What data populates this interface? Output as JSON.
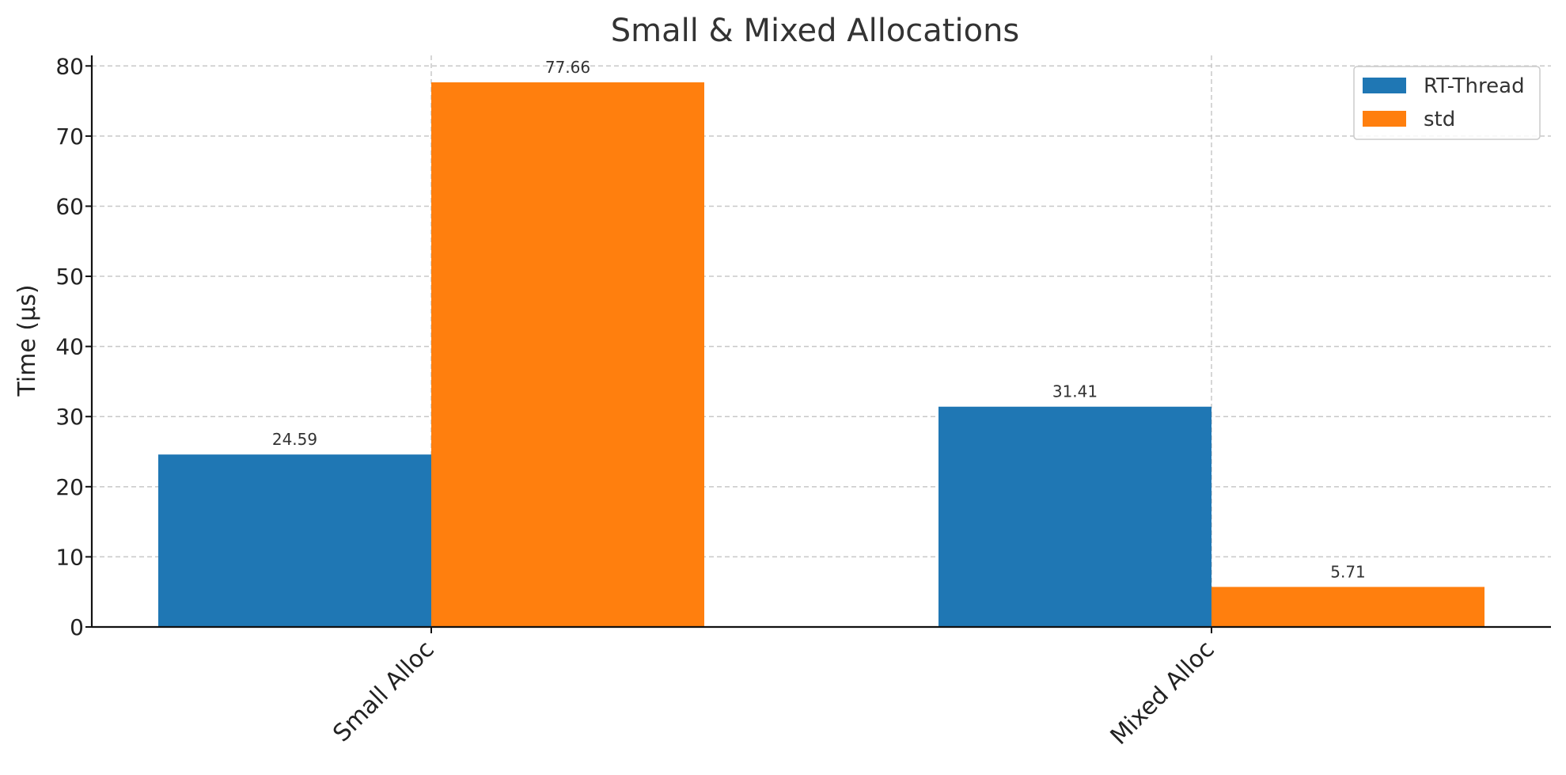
{
  "chart_data": {
    "type": "bar",
    "title": "Small & Mixed Allocations",
    "xlabel": "",
    "ylabel": "Time (µs)",
    "categories": [
      "Small Alloc",
      "Mixed Alloc"
    ],
    "series": [
      {
        "name": "RT-Thread",
        "values": [
          24.59,
          31.41
        ],
        "labels": [
          "24.59",
          "31.41"
        ],
        "color": "#1f77b4"
      },
      {
        "name": "std",
        "values": [
          77.66,
          5.71
        ],
        "labels": [
          "77.66",
          "5.71"
        ],
        "color": "#ff7f0e"
      }
    ],
    "ylim": [
      0,
      81.5
    ],
    "yticks": [
      0,
      10,
      20,
      30,
      40,
      50,
      60,
      70,
      80
    ],
    "grid": true,
    "legend": "top-right"
  }
}
